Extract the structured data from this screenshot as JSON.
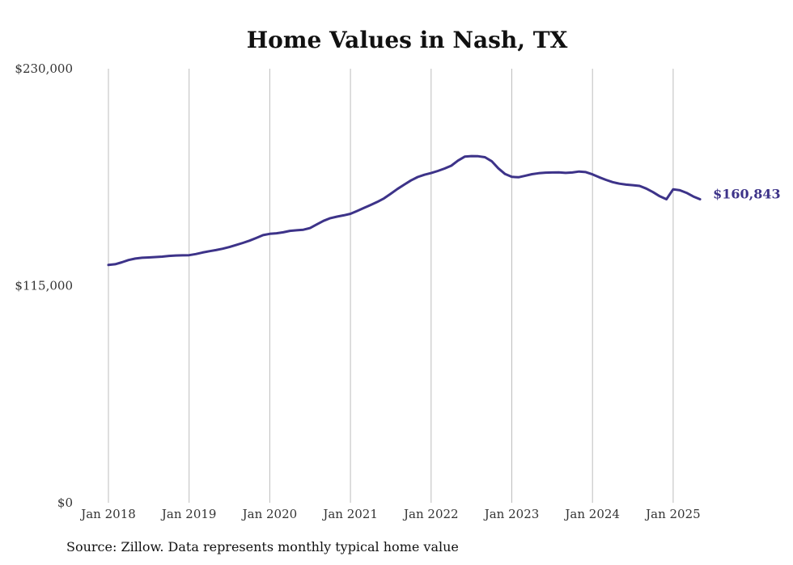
{
  "chart_data": {
    "type": "line",
    "title": "Home Values in Nash, TX",
    "xlabel": "",
    "ylabel": "",
    "ylim": [
      0,
      230000
    ],
    "y_ticks": [
      0,
      115000,
      230000
    ],
    "y_tick_labels": [
      "$0",
      "$115,000",
      "$230,000"
    ],
    "x_ticks": [
      "2018-01",
      "2019-01",
      "2020-01",
      "2021-01",
      "2022-01",
      "2023-01",
      "2024-01",
      "2025-01"
    ],
    "x_tick_labels": [
      "Jan 2018",
      "Jan 2019",
      "Jan 2020",
      "Jan 2021",
      "Jan 2022",
      "Jan 2023",
      "Jan 2024",
      "Jan 2025"
    ],
    "xlim": [
      "2018-01",
      "2025-05"
    ],
    "grid": "vertical",
    "series": [
      {
        "color": "#3d3389",
        "end_label": "$160,843",
        "x": [
          "2018-01",
          "2018-02",
          "2018-03",
          "2018-04",
          "2018-05",
          "2018-06",
          "2018-07",
          "2018-08",
          "2018-09",
          "2018-10",
          "2018-11",
          "2018-12",
          "2019-01",
          "2019-02",
          "2019-03",
          "2019-04",
          "2019-05",
          "2019-06",
          "2019-07",
          "2019-08",
          "2019-09",
          "2019-10",
          "2019-11",
          "2019-12",
          "2020-01",
          "2020-02",
          "2020-03",
          "2020-04",
          "2020-05",
          "2020-06",
          "2020-07",
          "2020-08",
          "2020-09",
          "2020-10",
          "2020-11",
          "2020-12",
          "2021-01",
          "2021-02",
          "2021-03",
          "2021-04",
          "2021-05",
          "2021-06",
          "2021-07",
          "2021-08",
          "2021-09",
          "2021-10",
          "2021-11",
          "2021-12",
          "2022-01",
          "2022-02",
          "2022-03",
          "2022-04",
          "2022-05",
          "2022-06",
          "2022-07",
          "2022-08",
          "2022-09",
          "2022-10",
          "2022-11",
          "2022-12",
          "2023-01",
          "2023-02",
          "2023-03",
          "2023-04",
          "2023-05",
          "2023-06",
          "2023-07",
          "2023-08",
          "2023-09",
          "2023-10",
          "2023-11",
          "2023-12",
          "2024-01",
          "2024-02",
          "2024-03",
          "2024-04",
          "2024-05",
          "2024-06",
          "2024-07",
          "2024-08",
          "2024-09",
          "2024-10",
          "2024-11",
          "2024-12",
          "2025-01",
          "2025-02",
          "2025-03",
          "2025-04",
          "2025-05"
        ],
        "values": [
          126000,
          126400,
          127400,
          128600,
          129400,
          129800,
          130000,
          130200,
          130400,
          130800,
          131000,
          131100,
          131200,
          131800,
          132600,
          133300,
          133900,
          134600,
          135500,
          136600,
          137700,
          138900,
          140300,
          141800,
          142500,
          142800,
          143300,
          144100,
          144400,
          144700,
          145600,
          147500,
          149400,
          150800,
          151600,
          152300,
          153100,
          154600,
          156200,
          157800,
          159400,
          161300,
          163800,
          166300,
          168600,
          170800,
          172600,
          173800,
          174700,
          175800,
          177100,
          178600,
          181300,
          183400,
          183700,
          183600,
          183100,
          181000,
          177200,
          174200,
          172700,
          172500,
          173300,
          174100,
          174600,
          174900,
          175000,
          175100,
          174800,
          175000,
          175500,
          175200,
          174000,
          172500,
          171100,
          169900,
          169100,
          168600,
          168300,
          167900,
          166500,
          164600,
          162400,
          160843,
          166100,
          165600,
          164200,
          162300,
          160843
        ]
      }
    ]
  },
  "source_note": "Source: Zillow. Data represents monthly typical home value"
}
